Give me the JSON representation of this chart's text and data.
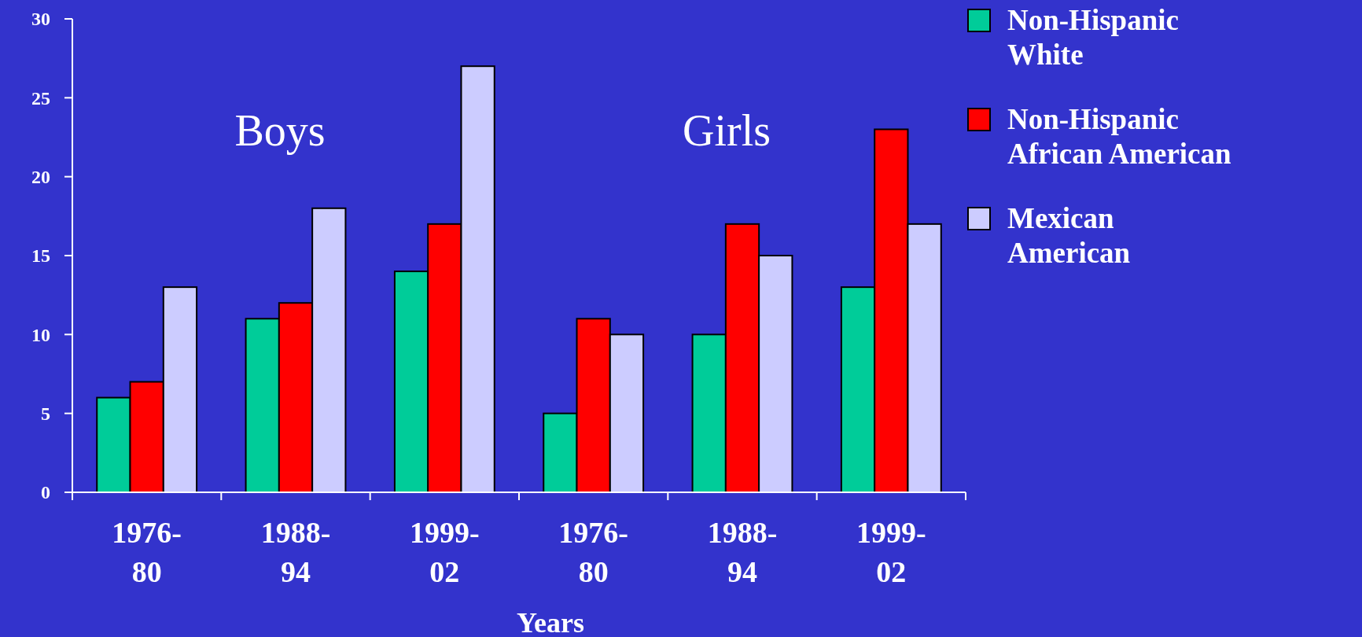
{
  "chart_data": {
    "type": "bar",
    "xlabel": "Years",
    "categories": [
      "1976-80",
      "1988-94",
      "1999-02",
      "1976-80",
      "1988-94",
      "1999-02"
    ],
    "series": [
      {
        "name": "Non-Hispanic White",
        "color": "#00cc99",
        "values": [
          6,
          11,
          14,
          5,
          10,
          13
        ]
      },
      {
        "name": "Non-Hispanic African American",
        "color": "#ff0000",
        "values": [
          7,
          12,
          17,
          11,
          17,
          23
        ]
      },
      {
        "name": "Mexican American",
        "color": "#ccccff",
        "values": [
          13,
          18,
          27,
          10,
          15,
          17
        ]
      }
    ],
    "annotations": [
      "Boys",
      "Girls"
    ],
    "ylim": [
      0,
      30
    ],
    "yticks": [
      0,
      5,
      10,
      15,
      20,
      25,
      30
    ],
    "grid": false,
    "legend": "right"
  }
}
